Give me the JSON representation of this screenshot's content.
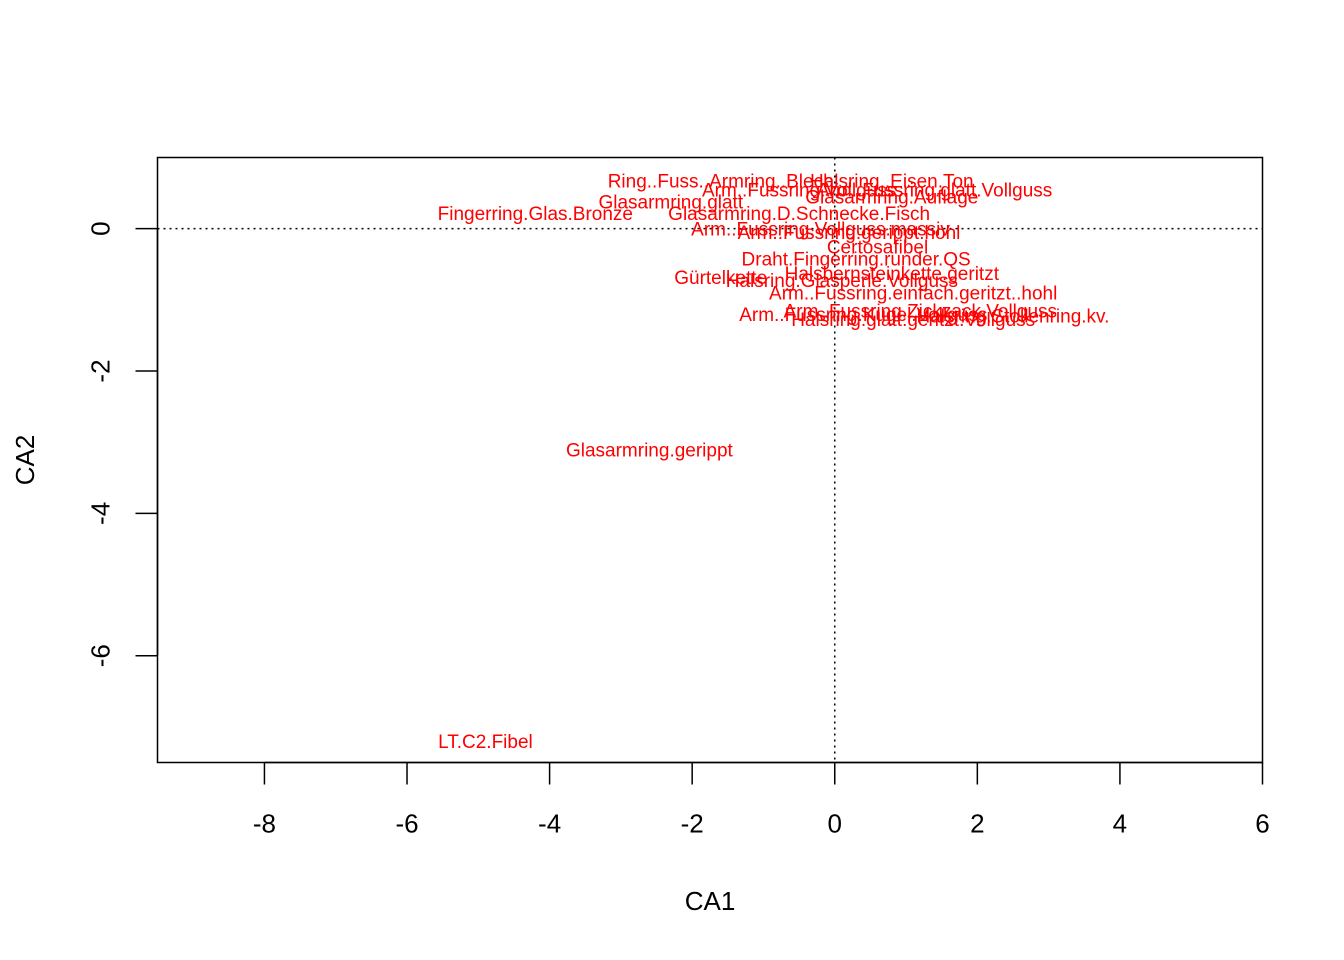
{
  "chart_data": {
    "type": "scatter",
    "title": "",
    "xlabel": "CA1",
    "ylabel": "CA2",
    "xlim": [
      -9.5,
      6
    ],
    "ylim": [
      -7.5,
      1
    ],
    "xticks": [
      -8,
      -6,
      -4,
      -2,
      0,
      2,
      4,
      6
    ],
    "yticks": [
      -6,
      -4,
      -2,
      0
    ],
    "reference_lines": {
      "x": 0,
      "y": 0,
      "style": "dotted"
    },
    "label_color": "#FF0000",
    "points": [
      {
        "label": "Ring..Fuss..Armring..Blech",
        "x": -1.6,
        "y": 0.68
      },
      {
        "label": "Halsring..Eisen.Ton",
        "x": 0.8,
        "y": 0.68
      },
      {
        "label": "Arm..Fussring.Vollguss",
        "x": -0.5,
        "y": 0.55
      },
      {
        "label": "Arm..Fussring.glatt.Vollguss",
        "x": 1.4,
        "y": 0.55
      },
      {
        "label": "Glasarmring.Auflage",
        "x": 0.8,
        "y": 0.45
      },
      {
        "label": "Glasarmring.glatt",
        "x": -2.3,
        "y": 0.38
      },
      {
        "label": "Fingerring.Glas.Bronze",
        "x": -4.2,
        "y": 0.22
      },
      {
        "label": "Glasarmring.D.Schnecke.Fisch",
        "x": -0.5,
        "y": 0.22
      },
      {
        "label": "Arm..Fussring.Vollguss.massiv",
        "x": -0.2,
        "y": 0.0
      },
      {
        "label": "Arm..Fussring.gerippt.hohl",
        "x": 0.2,
        "y": -0.05
      },
      {
        "label": "Certosafibel",
        "x": 0.6,
        "y": -0.25
      },
      {
        "label": "Draht.Fingerring.runder.QS",
        "x": 0.3,
        "y": -0.42
      },
      {
        "label": "Gürtelkette",
        "x": -1.6,
        "y": -0.68
      },
      {
        "label": "Halsbernsteinkette.geritzt",
        "x": 0.8,
        "y": -0.62
      },
      {
        "label": "Halsring.Glasperle.Vollguss",
        "x": 0.1,
        "y": -0.72
      },
      {
        "label": "Arm..Fussring.einfach.geritzt..hohl",
        "x": 1.1,
        "y": -0.9
      },
      {
        "label": "Arm..Fussring.Zickzack.Vollguss",
        "x": 1.2,
        "y": -1.15
      },
      {
        "label": "Arm..Fussring.Kugel.Vollguss",
        "x": 0.4,
        "y": -1.2
      },
      {
        "label": "Halsring.Stollenring.kv.",
        "x": 2.5,
        "y": -1.22
      },
      {
        "label": "Halsring.glatt.geritzt.Vollguss",
        "x": 1.1,
        "y": -1.27
      },
      {
        "label": "Glasarmring.gerippt",
        "x": -2.6,
        "y": -3.1
      },
      {
        "label": "LT.C2.Fibel",
        "x": -4.9,
        "y": -7.2
      }
    ]
  }
}
